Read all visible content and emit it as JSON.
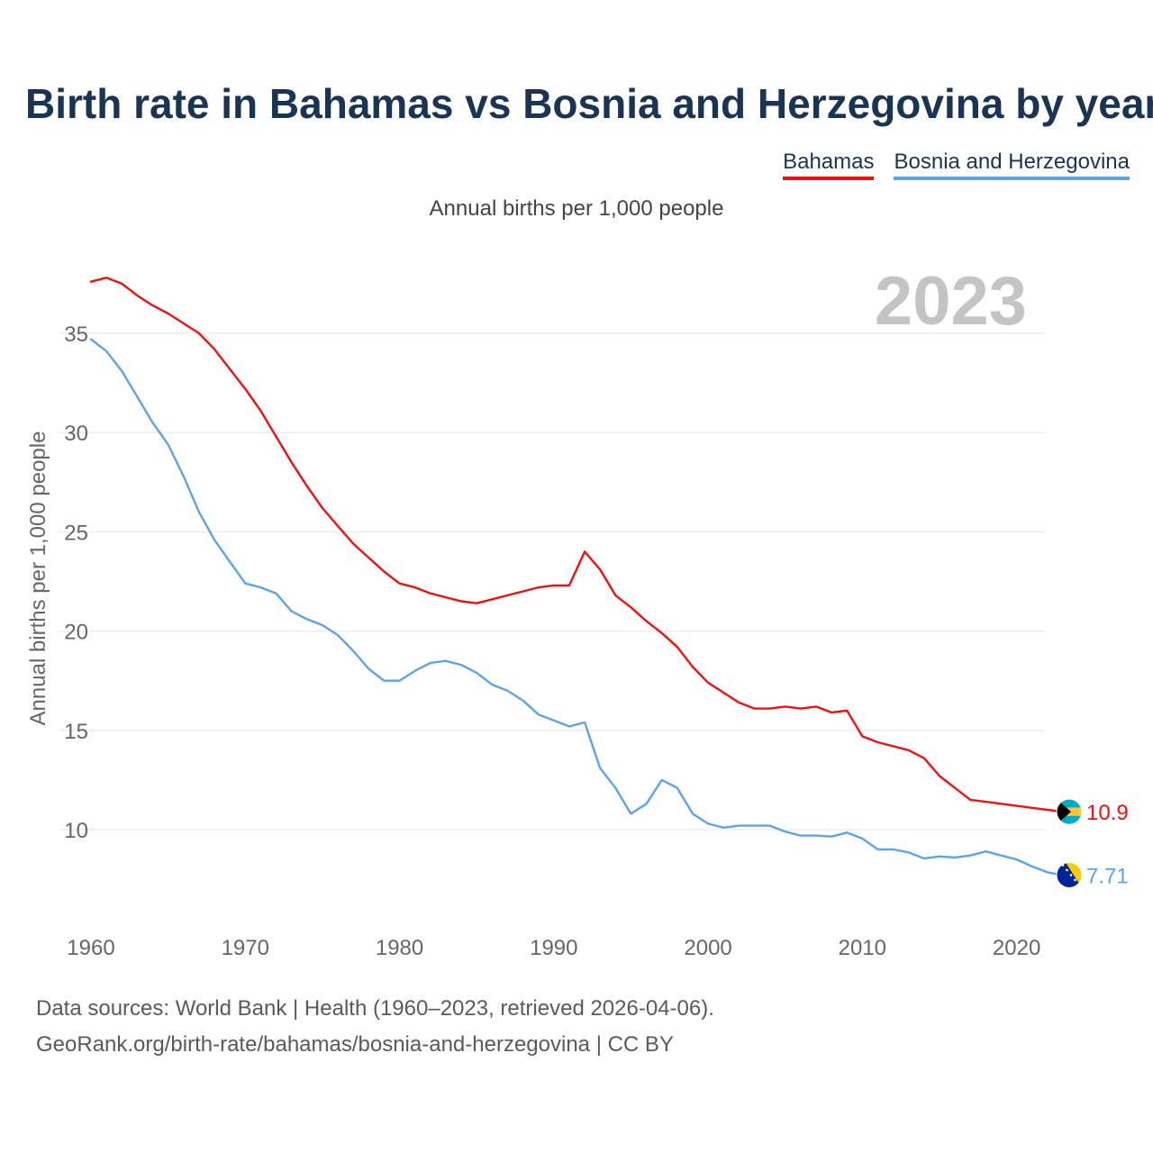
{
  "title": "Birth rate in Bahamas vs Bosnia and Herzegovina by year",
  "legend": {
    "bahamas": "Bahamas",
    "bosnia": "Bosnia and Herzegovina"
  },
  "subtitle": "Annual births per 1,000 people",
  "year_watermark": "2023",
  "footer": {
    "line1": "Data sources: World Bank | Health (1960–2023, retrieved 2026-04-06).",
    "line2": "GeoRank.org/birth-rate/bahamas/bosnia-and-herzegovina | CC BY"
  },
  "colors": {
    "bahamas": "#ee1111",
    "bosnia": "#5ea3e6",
    "grid": "#e6e6e6",
    "tick": "#666666"
  },
  "chart_data": {
    "type": "line",
    "title": "Birth rate in Bahamas vs Bosnia and Herzegovina by year",
    "xlabel": "",
    "ylabel": "Annual births per 1,000 people",
    "xlim": [
      1960,
      2023
    ],
    "ylim": [
      6,
      38
    ],
    "yticks": [
      10,
      15,
      20,
      25,
      30,
      35
    ],
    "xticks": [
      1960,
      1970,
      1980,
      1990,
      2000,
      2010,
      2020
    ],
    "grid": true,
    "legend": "top-right",
    "series": [
      {
        "name": "Bahamas",
        "color": "#ee1111",
        "end_label": "10.9",
        "x": [
          1960,
          1961,
          1962,
          1963,
          1964,
          1965,
          1966,
          1967,
          1968,
          1969,
          1970,
          1971,
          1972,
          1973,
          1974,
          1975,
          1976,
          1977,
          1978,
          1979,
          1980,
          1981,
          1982,
          1983,
          1984,
          1985,
          1986,
          1987,
          1988,
          1989,
          1990,
          1991,
          1992,
          1993,
          1994,
          1995,
          1996,
          1997,
          1998,
          1999,
          2000,
          2001,
          2002,
          2003,
          2004,
          2005,
          2006,
          2007,
          2008,
          2009,
          2010,
          2011,
          2012,
          2013,
          2014,
          2015,
          2016,
          2017,
          2018,
          2019,
          2020,
          2021,
          2022,
          2023
        ],
        "values": [
          37.6,
          37.8,
          37.5,
          36.9,
          36.4,
          36.0,
          35.5,
          35.0,
          34.2,
          33.2,
          32.2,
          31.1,
          29.8,
          28.5,
          27.3,
          26.2,
          25.3,
          24.4,
          23.7,
          23.0,
          22.4,
          22.2,
          21.9,
          21.7,
          21.5,
          21.4,
          21.6,
          21.8,
          22.0,
          22.2,
          22.3,
          22.3,
          24.0,
          23.1,
          21.8,
          21.2,
          20.5,
          19.9,
          19.2,
          18.2,
          17.4,
          16.9,
          16.4,
          16.1,
          16.1,
          16.2,
          16.1,
          16.2,
          15.9,
          16.0,
          14.7,
          14.4,
          14.2,
          14.0,
          13.6,
          12.7,
          12.1,
          11.5,
          11.4,
          11.3,
          11.2,
          11.1,
          11.0,
          10.9
        ]
      },
      {
        "name": "Bosnia and Herzegovina",
        "color": "#5ea3e6",
        "end_label": "7.71",
        "x": [
          1960,
          1961,
          1962,
          1963,
          1964,
          1965,
          1966,
          1967,
          1968,
          1969,
          1970,
          1971,
          1972,
          1973,
          1974,
          1975,
          1976,
          1977,
          1978,
          1979,
          1980,
          1981,
          1982,
          1983,
          1984,
          1985,
          1986,
          1987,
          1988,
          1989,
          1990,
          1991,
          1992,
          1993,
          1994,
          1995,
          1996,
          1997,
          1998,
          1999,
          2000,
          2001,
          2002,
          2003,
          2004,
          2005,
          2006,
          2007,
          2008,
          2009,
          2010,
          2011,
          2012,
          2013,
          2014,
          2015,
          2016,
          2017,
          2018,
          2019,
          2020,
          2021,
          2022,
          2023
        ],
        "values": [
          34.7,
          34.1,
          33.1,
          31.8,
          30.5,
          29.4,
          27.8,
          26.0,
          24.6,
          23.5,
          22.4,
          22.2,
          21.9,
          21.0,
          20.6,
          20.3,
          19.8,
          19.0,
          18.1,
          17.5,
          17.5,
          18.0,
          18.4,
          18.5,
          18.3,
          17.9,
          17.3,
          17.0,
          16.5,
          15.8,
          15.5,
          15.2,
          15.4,
          13.1,
          12.1,
          10.8,
          11.3,
          12.5,
          12.1,
          10.8,
          10.3,
          10.1,
          10.2,
          10.2,
          10.2,
          9.9,
          9.7,
          9.7,
          9.65,
          9.85,
          9.55,
          9.0,
          9.0,
          8.85,
          8.55,
          8.65,
          8.6,
          8.7,
          8.9,
          8.7,
          8.5,
          8.15,
          7.85,
          7.71
        ]
      }
    ]
  }
}
